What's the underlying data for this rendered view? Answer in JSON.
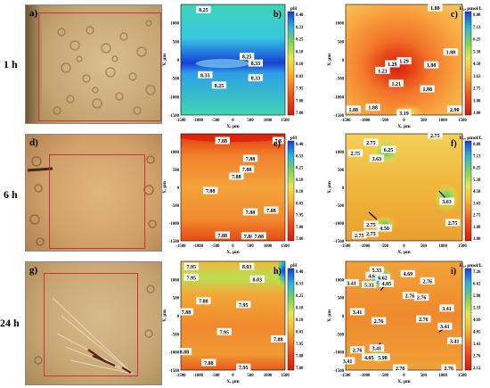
{
  "rows": [
    {
      "time": "1 h",
      "micro": "a)",
      "ph": "b)",
      "h2": "c)"
    },
    {
      "time": "6 h",
      "micro": "d)",
      "ph": "e)",
      "h2": "f)"
    },
    {
      "time": "24 h",
      "micro": "g)",
      "ph": "h)",
      "h2": "i)"
    }
  ],
  "axes": {
    "x_label": "X, μm",
    "y_label": "Y, μm",
    "x_ticks": [
      "-1500",
      "-1000",
      "-500",
      "0",
      "500",
      "1000",
      "1500"
    ],
    "y_ticks": [
      "1000",
      "500",
      "0",
      "-500",
      "-1000",
      "-1500"
    ],
    "x_range": [
      -1500,
      1500
    ],
    "y_range": [
      -1500,
      1500
    ]
  },
  "colorbars": {
    "ph": {
      "title": "pH",
      "ticks": [
        "8.40",
        "8.33",
        "8.25",
        "8.18",
        "8.10",
        "8.03",
        "7.95",
        "7.88",
        "7.80"
      ]
    },
    "h2_1": {
      "title": "H₂, μmol/L",
      "ticks": [
        "8.00",
        "7.13",
        "6.25",
        "5.38",
        "4.50",
        "3.63",
        "2.75",
        "1.88",
        "1.00"
      ]
    },
    "h2_2": {
      "title": "H₂, μmol/L",
      "ticks": [
        "8.00",
        "7.13",
        "6.25",
        "5.38",
        "4.50",
        "3.63",
        "2.75",
        "1.88",
        "1.00"
      ]
    },
    "h2_3": {
      "title": "H₂, μmol/L",
      "ticks": [
        "7.26",
        "6.62",
        "5.98",
        "5.33",
        "4.69",
        "4.05",
        "3.41",
        "2.76",
        "2.12"
      ]
    }
  },
  "labels": {
    "b": [
      {
        "t": "8.25",
        "x": -850,
        "y": 1350
      },
      {
        "t": "8.25",
        "x": 400,
        "y": 80
      },
      {
        "t": "8.33",
        "x": 650,
        "y": -100
      },
      {
        "t": "8.33",
        "x": -800,
        "y": -420
      },
      {
        "t": "8.33",
        "x": 650,
        "y": -500
      },
      {
        "t": "8.25",
        "x": -400,
        "y": -700
      }
    ],
    "c": [
      {
        "t": "1.88",
        "x": 800,
        "y": 1400
      },
      {
        "t": "1.88",
        "x": 1200,
        "y": 200
      },
      {
        "t": "1.29",
        "x": -300,
        "y": -120
      },
      {
        "t": "1.29",
        "x": 0,
        "y": -40
      },
      {
        "t": "1.21",
        "x": -550,
        "y": -300
      },
      {
        "t": "1.88",
        "x": 700,
        "y": -150
      },
      {
        "t": "1.21",
        "x": -200,
        "y": -650
      },
      {
        "t": "1.88",
        "x": 600,
        "y": -800
      },
      {
        "t": "1.88",
        "x": -1300,
        "y": -1350
      },
      {
        "t": "1.88",
        "x": -800,
        "y": -1300
      },
      {
        "t": "3.19",
        "x": 0,
        "y": -1450
      },
      {
        "t": "2.90",
        "x": 1300,
        "y": -1350
      }
    ],
    "e": [
      {
        "t": "7.88",
        "x": -300,
        "y": 1300
      },
      {
        "t": "7.8",
        "x": 1300,
        "y": 1300
      },
      {
        "t": "7.88",
        "x": 500,
        "y": 800
      },
      {
        "t": "7.88",
        "x": 400,
        "y": 500
      },
      {
        "t": "7.88",
        "x": 100,
        "y": 300
      },
      {
        "t": "7.88",
        "x": -650,
        "y": -100
      },
      {
        "t": "7.88",
        "x": 500,
        "y": -700
      },
      {
        "t": "7.88",
        "x": 1100,
        "y": -650
      },
      {
        "t": "7.88",
        "x": -300,
        "y": -1350
      },
      {
        "t": "7.88",
        "x": 450,
        "y": -1370
      },
      {
        "t": "7.88",
        "x": 750,
        "y": -1370
      }
    ],
    "f": [
      {
        "t": "2.75",
        "x": -850,
        "y": 1250
      },
      {
        "t": "6.25",
        "x": -400,
        "y": 1050
      },
      {
        "t": "2.75",
        "x": 800,
        "y": 1450
      },
      {
        "t": "2.75",
        "x": -1250,
        "y": 950
      },
      {
        "t": "3.63",
        "x": -700,
        "y": 800
      },
      {
        "t": "3.63",
        "x": 1100,
        "y": -400
      },
      {
        "t": "2.75",
        "x": 1250,
        "y": -1000
      },
      {
        "t": "2.75",
        "x": -850,
        "y": -1050
      },
      {
        "t": "4.50",
        "x": -500,
        "y": -1150
      },
      {
        "t": "2.75",
        "x": -1150,
        "y": -1350
      },
      {
        "t": "2.75",
        "x": -850,
        "y": -1300
      }
    ],
    "h": [
      {
        "t": "7.95",
        "x": -1200,
        "y": 1350
      },
      {
        "t": "8.03",
        "x": 400,
        "y": 1350
      },
      {
        "t": "7.95",
        "x": -1200,
        "y": 1050
      },
      {
        "t": "8.03",
        "x": 700,
        "y": 1000
      },
      {
        "t": "7.88",
        "x": -850,
        "y": 400
      },
      {
        "t": "7.88",
        "x": -1350,
        "y": 100
      },
      {
        "t": "7.95",
        "x": 300,
        "y": 300
      },
      {
        "t": "7.95",
        "x": -250,
        "y": -450
      },
      {
        "t": "7.88",
        "x": 1300,
        "y": -650
      },
      {
        "t": "7.88",
        "x": -700,
        "y": -1300
      },
      {
        "t": "7.95",
        "x": 300,
        "y": -1430
      },
      {
        "t": "8.88",
        "x": -1400,
        "y": -1000
      }
    ],
    "i": [
      {
        "t": "3.41",
        "x": -1350,
        "y": 900
      },
      {
        "t": "4.69",
        "x": -800,
        "y": 1100
      },
      {
        "t": "5.33",
        "x": -700,
        "y": 1250
      },
      {
        "t": "6.62",
        "x": -550,
        "y": 1050
      },
      {
        "t": "4.69",
        "x": 100,
        "y": 1150
      },
      {
        "t": "5.33",
        "x": -900,
        "y": 850
      },
      {
        "t": "4.05",
        "x": -450,
        "y": 880
      },
      {
        "t": "2.76",
        "x": 600,
        "y": 950
      },
      {
        "t": "2.76",
        "x": 150,
        "y": 550
      },
      {
        "t": "2.76",
        "x": 450,
        "y": 500
      },
      {
        "t": "3.41",
        "x": -1200,
        "y": 100
      },
      {
        "t": "2.76",
        "x": -650,
        "y": -150
      },
      {
        "t": "2.76",
        "x": 500,
        "y": -100
      },
      {
        "t": "3.41",
        "x": 1100,
        "y": 200
      },
      {
        "t": "3.41",
        "x": 1050,
        "y": -300
      },
      {
        "t": "3.41",
        "x": 1300,
        "y": -700
      },
      {
        "t": "2.76",
        "x": -1200,
        "y": -950
      },
      {
        "t": "3.41",
        "x": -700,
        "y": -900
      },
      {
        "t": "4.05",
        "x": -900,
        "y": -1150
      },
      {
        "t": "5.98",
        "x": -550,
        "y": -1150
      },
      {
        "t": "3.41",
        "x": -1450,
        "y": -1250
      },
      {
        "t": "2.76",
        "x": -100,
        "y": -1450
      },
      {
        "t": "2.76",
        "x": 1150,
        "y": -1450
      }
    ]
  }
}
